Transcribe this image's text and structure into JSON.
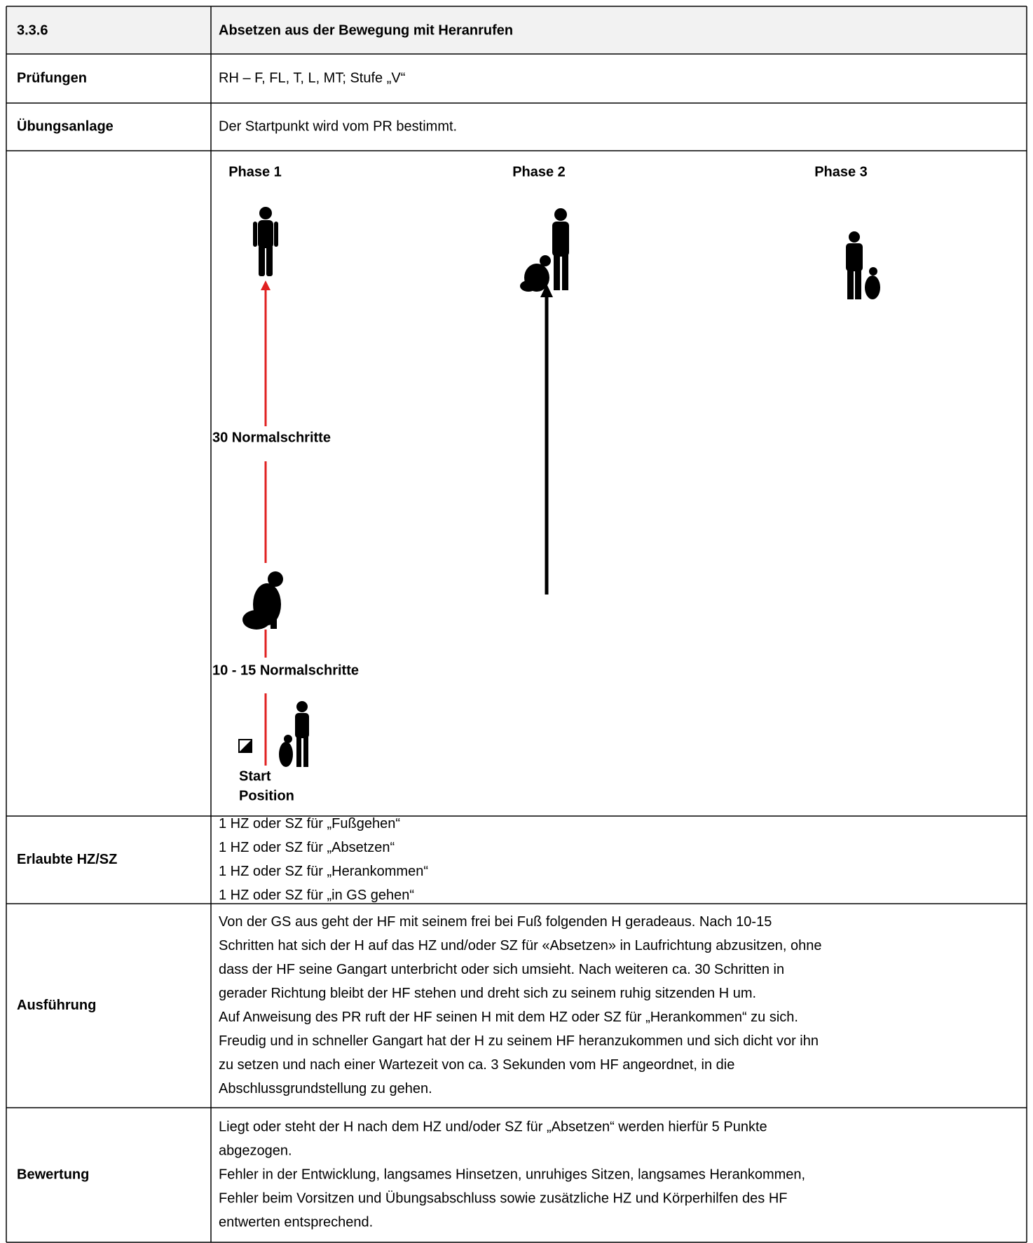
{
  "header": {
    "number": "3.3.6",
    "title": "Absetzen aus der Bewegung mit Heranrufen"
  },
  "rows": [
    {
      "label": "Prüfungen",
      "lines": [
        "RH – F, FL, T, L, MT; Stufe „V“"
      ]
    },
    {
      "label": "Übungsanlage",
      "lines": [
        "Der Startpunkt wird vom PR bestimmt."
      ]
    }
  ],
  "diagram": {
    "phases": [
      "Phase 1",
      "Phase 2",
      "Phase 3"
    ],
    "distances": [
      "30 Normalschritte",
      "10 - 15 Normalschritte"
    ],
    "start_label": [
      "Start",
      "Position"
    ]
  },
  "rows_after_diagram": [
    {
      "label": "Erlaubte HZ/SZ",
      "lines": [
        "1 HZ oder SZ für „Fußgehen“",
        "1 HZ oder SZ für „Absetzen“",
        "1 HZ oder SZ für „Herankommen“",
        "1 HZ oder SZ für „in GS gehen“"
      ]
    },
    {
      "label": "Ausführung",
      "lines": [
        "Von der GS aus geht der HF mit seinem frei bei Fuß folgenden H geradeaus. Nach 10-15",
        "Schritten hat sich der H auf das HZ und/oder SZ für «Absetzen» in Laufrichtung abzusitzen, ohne",
        "dass der HF seine Gangart unterbricht oder sich umsieht. Nach weiteren ca. 30 Schritten in",
        "gerader Richtung bleibt der HF stehen und dreht sich zu seinem ruhig sitzenden H um.",
        "Auf Anweisung des PR ruft der HF seinen H mit dem HZ oder SZ für „Herankommen“ zu sich.",
        "Freudig und in schneller Gangart hat der H zu seinem HF heranzukommen und sich dicht vor ihn",
        "zu setzen und nach einer Wartezeit von ca. 3 Sekunden vom HF angeordnet, in die",
        "Abschlussgrundstellung zu gehen."
      ]
    },
    {
      "label": "Bewertung",
      "lines": [
        "Liegt oder steht der H nach dem HZ und/oder SZ für „Absetzen“ werden hierfür 5 Punkte",
        "abgezogen.",
        "Fehler in der Entwicklung, langsames Hinsetzen, unruhiges Sitzen, langsames Herankommen,",
        "Fehler beim Vorsitzen und Übungsabschluss sowie zusätzliche HZ und Körperhilfen des HF",
        "entwerten entsprechend."
      ]
    }
  ]
}
